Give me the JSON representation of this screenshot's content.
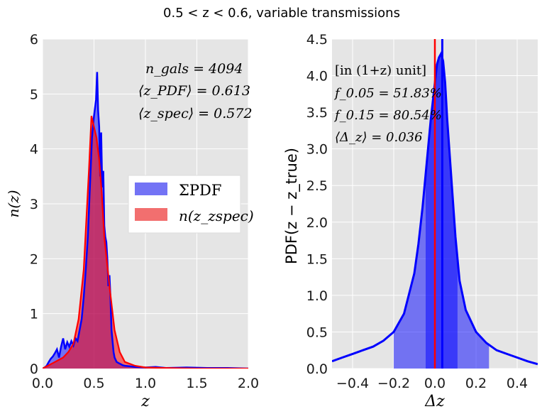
{
  "figure": {
    "title": "0.5 < z < 0.6, variable transmissions"
  },
  "chart_data": [
    {
      "type": "area",
      "xlabel": "z",
      "ylabel": "n(z)",
      "xlim": [
        0.0,
        2.0
      ],
      "ylim": [
        0,
        6
      ],
      "xticks": [
        "0.0",
        "0.5",
        "1.0",
        "1.5",
        "2.0"
      ],
      "yticks": [
        "0",
        "1",
        "2",
        "3",
        "4",
        "5",
        "6"
      ],
      "grid": true,
      "legend_position": "center-right",
      "legend": [
        {
          "label": "ΣPDF",
          "color": "#7373f5"
        },
        {
          "label": "n(z_zspec)",
          "color": "#f26f6f"
        }
      ],
      "annotations": [
        "n_gals = 4094",
        "⟨z_PDF⟩ = 0.613",
        "⟨z_spec⟩ = 0.572"
      ],
      "series": [
        {
          "name": "ΣPDF",
          "color": "#0000ff",
          "x": [
            0.0,
            0.02,
            0.04,
            0.06,
            0.08,
            0.1,
            0.12,
            0.14,
            0.16,
            0.18,
            0.2,
            0.22,
            0.24,
            0.26,
            0.28,
            0.3,
            0.32,
            0.34,
            0.36,
            0.38,
            0.4,
            0.42,
            0.44,
            0.46,
            0.48,
            0.5,
            0.52,
            0.53,
            0.54,
            0.55,
            0.56,
            0.57,
            0.58,
            0.59,
            0.6,
            0.61,
            0.62,
            0.63,
            0.64,
            0.65,
            0.66,
            0.67,
            0.68,
            0.69,
            0.7,
            0.72,
            0.74,
            0.76,
            0.78,
            0.8,
            0.85,
            0.9,
            1.0,
            1.1,
            1.2,
            1.4,
            1.6,
            1.8,
            2.0
          ],
          "y": [
            0.0,
            0.02,
            0.05,
            0.12,
            0.18,
            0.22,
            0.28,
            0.35,
            0.2,
            0.4,
            0.55,
            0.35,
            0.48,
            0.4,
            0.5,
            0.42,
            0.55,
            0.5,
            0.7,
            0.9,
            1.3,
            1.8,
            2.4,
            3.3,
            4.2,
            4.6,
            4.9,
            5.4,
            4.7,
            4.4,
            3.5,
            4.3,
            3.3,
            3.6,
            2.6,
            2.4,
            2.3,
            2.0,
            1.5,
            1.7,
            1.3,
            0.7,
            0.5,
            0.3,
            0.2,
            0.12,
            0.1,
            0.08,
            0.06,
            0.05,
            0.04,
            0.03,
            0.02,
            0.03,
            0.01,
            0.02,
            0.01,
            0.01,
            0.0
          ]
        },
        {
          "name": "n(z_zspec)",
          "color": "#ff0000",
          "x": [
            0.0,
            0.05,
            0.1,
            0.15,
            0.2,
            0.25,
            0.3,
            0.35,
            0.4,
            0.45,
            0.475,
            0.5,
            0.525,
            0.55,
            0.575,
            0.6,
            0.65,
            0.7,
            0.75,
            0.8,
            0.9,
            1.0,
            1.2,
            1.5,
            2.0
          ],
          "y": [
            0.0,
            0.05,
            0.1,
            0.15,
            0.2,
            0.3,
            0.45,
            0.9,
            1.8,
            3.6,
            4.6,
            4.4,
            4.2,
            3.8,
            3.2,
            2.4,
            1.5,
            0.7,
            0.3,
            0.12,
            0.05,
            0.02,
            0.01,
            0.0,
            0.0
          ]
        }
      ]
    },
    {
      "type": "line",
      "xlabel": "Δz",
      "ylabel": "PDF(z − z_true)",
      "xlim": [
        -0.5,
        0.5
      ],
      "ylim": [
        0.0,
        4.5
      ],
      "xticks": [
        "−0.4",
        "−0.2",
        "0.0",
        "0.2",
        "0.4"
      ],
      "yticks": [
        "0.0",
        "0.5",
        "1.0",
        "1.5",
        "2.0",
        "2.5",
        "3.0",
        "3.5",
        "4.0",
        "4.5"
      ],
      "grid": true,
      "annotations": [
        "[in (1+z) unit]",
        "f_0.05 = 51.83%",
        "f_0.15 = 80.54%",
        "⟨Δ_z⟩ = 0.036"
      ],
      "vlines": [
        {
          "x": 0.0,
          "color": "#ff0000"
        },
        {
          "x": 0.036,
          "color": "#0000ff"
        }
      ],
      "shaded_bands": [
        {
          "x_from": -0.2,
          "x_to": 0.263,
          "label_ref": "f_0.15"
        },
        {
          "x_from": -0.045,
          "x_to": 0.11,
          "label_ref": "f_0.05"
        }
      ],
      "series": [
        {
          "name": "PDF",
          "color": "#0000ff",
          "x": [
            -0.5,
            -0.45,
            -0.4,
            -0.35,
            -0.3,
            -0.25,
            -0.2,
            -0.15,
            -0.1,
            -0.08,
            -0.06,
            -0.04,
            -0.02,
            0.0,
            0.01,
            0.02,
            0.03,
            0.04,
            0.05,
            0.06,
            0.08,
            0.1,
            0.12,
            0.15,
            0.2,
            0.25,
            0.3,
            0.35,
            0.4,
            0.45,
            0.5
          ],
          "y": [
            0.1,
            0.15,
            0.2,
            0.25,
            0.3,
            0.38,
            0.5,
            0.75,
            1.3,
            1.7,
            2.2,
            2.8,
            3.4,
            3.9,
            4.15,
            4.25,
            4.3,
            4.2,
            3.9,
            3.4,
            2.6,
            1.8,
            1.2,
            0.8,
            0.5,
            0.35,
            0.25,
            0.2,
            0.15,
            0.1,
            0.06
          ]
        }
      ]
    }
  ]
}
